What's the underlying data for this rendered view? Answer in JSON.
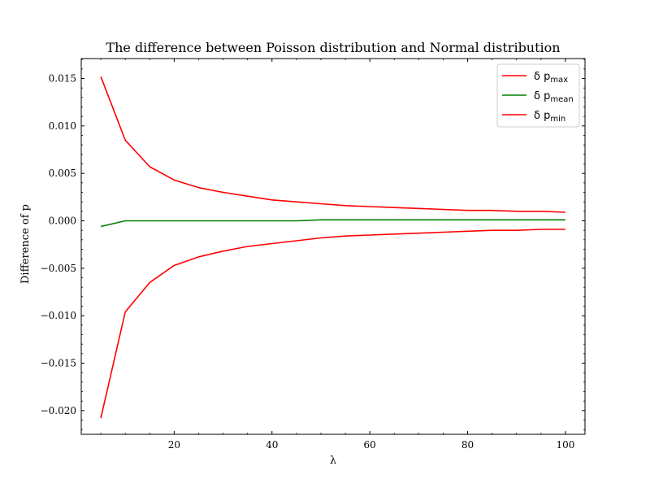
{
  "chart_data": {
    "type": "line",
    "title": "The difference between Poisson distribution and Normal distribution",
    "xlabel": "λ",
    "ylabel": "Difference of p",
    "xlim": [
      1,
      104
    ],
    "ylim": [
      -0.0225,
      0.0171
    ],
    "xticks": [
      20,
      40,
      60,
      80,
      100
    ],
    "xtick_labels": [
      "20",
      "40",
      "60",
      "80",
      "100"
    ],
    "yticks": [
      -0.02,
      -0.015,
      -0.01,
      -0.005,
      0.0,
      0.005,
      0.01,
      0.015
    ],
    "ytick_labels": [
      "−0.020",
      "−0.015",
      "−0.010",
      "−0.005",
      "0.000",
      "0.005",
      "0.010",
      "0.015"
    ],
    "grid": false,
    "legend_position": "top-right",
    "x": [
      5,
      10,
      15,
      20,
      25,
      30,
      35,
      40,
      45,
      50,
      55,
      60,
      65,
      70,
      75,
      80,
      85,
      90,
      95,
      100
    ],
    "series": [
      {
        "name": "δ p",
        "name_sub": "max",
        "color": "#ff0000",
        "values": [
          0.0152,
          0.0085,
          0.0057,
          0.0043,
          0.0035,
          0.003,
          0.0026,
          0.0022,
          0.002,
          0.0018,
          0.0016,
          0.0015,
          0.0014,
          0.0013,
          0.0012,
          0.0011,
          0.0011,
          0.001,
          0.001,
          0.0009
        ]
      },
      {
        "name": "δ p",
        "name_sub": "mean",
        "color": "#008000",
        "values": [
          -0.0006,
          0.0,
          0.0,
          0.0,
          0.0,
          0.0,
          0.0,
          0.0,
          0.0,
          0.0001,
          0.0001,
          0.0001,
          0.0001,
          0.0001,
          0.0001,
          0.0001,
          0.0001,
          0.0001,
          0.0001,
          0.0001
        ]
      },
      {
        "name": "δ p",
        "name_sub": "min",
        "color": "#ff0000",
        "values": [
          -0.0208,
          -0.0096,
          -0.0065,
          -0.0047,
          -0.0038,
          -0.0032,
          -0.0027,
          -0.0024,
          -0.0021,
          -0.0018,
          -0.0016,
          -0.0015,
          -0.0014,
          -0.0013,
          -0.0012,
          -0.0011,
          -0.001,
          -0.001,
          -0.0009,
          -0.0009
        ]
      }
    ]
  }
}
